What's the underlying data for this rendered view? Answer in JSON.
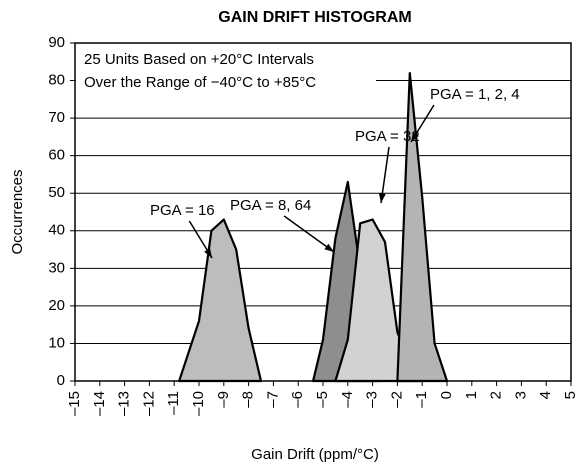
{
  "chart_data": {
    "type": "area",
    "title": "GAIN DRIFT HISTOGRAM",
    "xlabel": "Gain Drift (ppm/°C)",
    "ylabel": "Occurrences",
    "annotations": [
      "25 Units Based on +20°C Intervals",
      "Over the Range of −40°C to +85°C"
    ],
    "xlim": [
      -15,
      5
    ],
    "ylim": [
      0,
      90
    ],
    "xticks": [
      {
        "value": -15,
        "label": "–15"
      },
      {
        "value": -14,
        "label": "–14"
      },
      {
        "value": -13,
        "label": "–13"
      },
      {
        "value": -12,
        "label": "–12"
      },
      {
        "value": -11,
        "label": "–11"
      },
      {
        "value": -10,
        "label": "–10"
      },
      {
        "value": -9,
        "label": "–9"
      },
      {
        "value": -8,
        "label": "–8"
      },
      {
        "value": -7,
        "label": "–7"
      },
      {
        "value": -6,
        "label": "–6"
      },
      {
        "value": -5,
        "label": "–5"
      },
      {
        "value": -4,
        "label": "–4"
      },
      {
        "value": -3,
        "label": "–3"
      },
      {
        "value": -2,
        "label": "–2"
      },
      {
        "value": -1,
        "label": "–1"
      },
      0,
      1,
      2,
      3,
      4,
      5
    ],
    "yticks": [
      0,
      10,
      20,
      30,
      40,
      50,
      60,
      70,
      80,
      90
    ],
    "grid": true,
    "series": [
      {
        "name": "PGA = 16",
        "color": "#bdbdbd",
        "x": [
          -10.8,
          -10,
          -9.5,
          -9,
          -8.5,
          -8,
          -7.5
        ],
        "values": [
          0,
          16,
          40,
          43,
          35,
          14,
          0
        ]
      },
      {
        "name": "PGA = 8, 64",
        "color": "#8e8e8e",
        "x": [
          -5.4,
          -5,
          -4.5,
          -4,
          -3.5,
          -3,
          -2.7
        ],
        "values": [
          0,
          11,
          38,
          53,
          30,
          10,
          0
        ]
      },
      {
        "name": "PGA = 32",
        "color": "#d2d2d2",
        "x": [
          -4.5,
          -4,
          -3.5,
          -3,
          -2.5,
          -2,
          -1.5,
          -1
        ],
        "values": [
          0,
          11,
          42,
          43,
          37,
          13,
          5,
          0
        ]
      },
      {
        "name": "PGA = 1, 2, 4",
        "color": "#b4b4b4",
        "x": [
          -2,
          -1.5,
          -1,
          -0.5,
          0
        ],
        "values": [
          0,
          82,
          49,
          10,
          0
        ]
      }
    ]
  }
}
